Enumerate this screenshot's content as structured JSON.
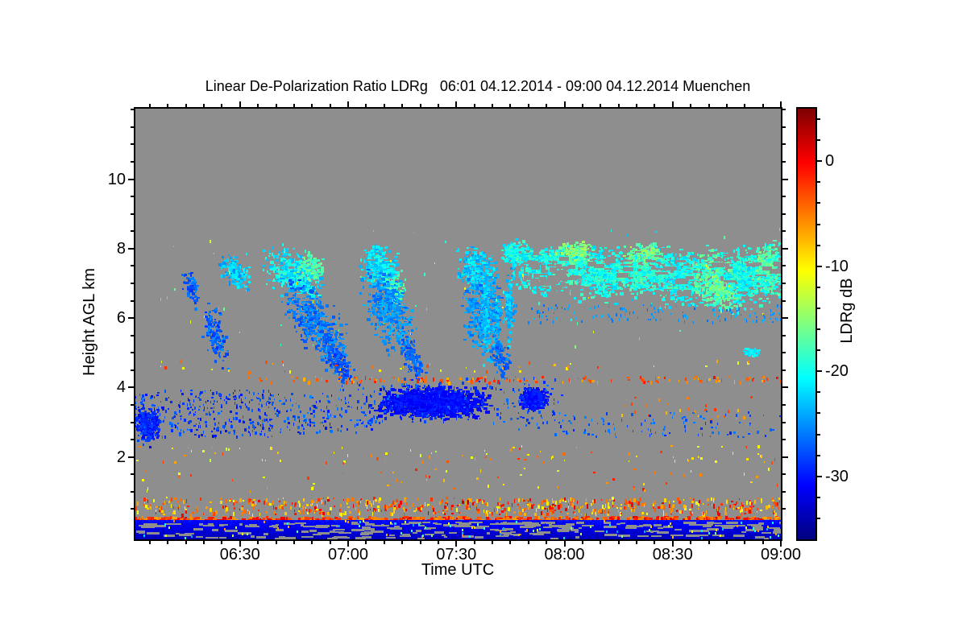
{
  "title": "Linear De-Polarization Ratio LDRg   06:01 04.12.2014 - 09:00 04.12.2014 Muenchen",
  "axes": {
    "x": {
      "label": "Time UTC",
      "start": "06:01",
      "end": "09:00",
      "major_ticks": [
        {
          "t": 6.5,
          "label": "06:30"
        },
        {
          "t": 7.0,
          "label": "07:00"
        },
        {
          "t": 7.5,
          "label": "07:30"
        },
        {
          "t": 8.0,
          "label": "08:00"
        },
        {
          "t": 8.5,
          "label": "08:30"
        },
        {
          "t": 9.0,
          "label": "09:00"
        }
      ],
      "minor_step_minutes": 5
    },
    "y": {
      "label": "Height AGL km",
      "major_ticks": [
        2,
        4,
        6,
        8,
        10
      ],
      "minor_step_km": 0.5,
      "min_km": -0.37,
      "max_km": 12.4
    }
  },
  "colorbar": {
    "label": "LDRg dB",
    "vmin": -36,
    "vmax": 5,
    "major_ticks": [
      0,
      -10,
      -20,
      -30
    ],
    "minor_step_db": 2
  },
  "colors": {
    "page_background": "#ffffff",
    "plot_background": "#8e8e8e",
    "frame": "#000000",
    "colormap": "jet"
  },
  "chart_data": {
    "type": "heatmap",
    "title": "Linear De-Polarization Ratio LDRg   06:01 04.12.2014 - 09:00 04.12.2014 Muenchen",
    "x_unit": "hours_utc",
    "y_unit": "km_agl",
    "value_unit": "dB",
    "x_range": [
      6.0167,
      9.0
    ],
    "y_range": [
      -0.37,
      12.4
    ],
    "value_range": [
      -36,
      5
    ],
    "features": {
      "clusters": [
        {
          "t": 6.27,
          "h": 6.9,
          "rt": 0.035,
          "rh": 0.4,
          "slant": 1.1,
          "v": -27,
          "dv": 2,
          "n": 70,
          "s": 3
        },
        {
          "t": 6.38,
          "h": 5.5,
          "rt": 0.05,
          "rh": 0.7,
          "slant": 1.2,
          "v": -27,
          "dv": 2,
          "n": 140,
          "s": 3
        },
        {
          "t": 6.47,
          "h": 7.35,
          "rt": 0.06,
          "rh": 0.4,
          "slant": 0.5,
          "v": -23,
          "dv": 2.5,
          "n": 160,
          "s": 3
        },
        {
          "t": 6.75,
          "h": 7.3,
          "rt": 0.12,
          "rh": 0.6,
          "slant": 0.3,
          "v": -21,
          "dv": 3,
          "n": 430,
          "s": 4
        },
        {
          "t": 6.82,
          "h": 7.5,
          "rt": 0.06,
          "rh": 0.35,
          "slant": 0.2,
          "v": -17.5,
          "dv": 2,
          "n": 100,
          "s": 3
        },
        {
          "t": 6.84,
          "h": 5.9,
          "rt": 0.13,
          "rh": 0.85,
          "slant": 0.9,
          "v": -26,
          "dv": 2,
          "n": 420,
          "s": 4
        },
        {
          "t": 6.95,
          "h": 4.75,
          "rt": 0.06,
          "rh": 0.4,
          "slant": 1.0,
          "v": -27.5,
          "dv": 1.5,
          "n": 130,
          "s": 3
        },
        {
          "t": 7.14,
          "h": 7.5,
          "rt": 0.08,
          "rh": 0.55,
          "slant": 0.2,
          "v": -21.5,
          "dv": 2.5,
          "n": 300,
          "s": 4
        },
        {
          "t": 7.21,
          "h": 6.9,
          "rt": 0.045,
          "rh": 0.45,
          "slant": 0.4,
          "v": -18,
          "dv": 2,
          "n": 100,
          "s": 3
        },
        {
          "t": 7.18,
          "h": 6.3,
          "rt": 0.1,
          "rh": 1.0,
          "slant": 0.7,
          "v": -25,
          "dv": 2,
          "n": 400,
          "s": 4
        },
        {
          "t": 7.29,
          "h": 4.9,
          "rt": 0.05,
          "rh": 0.5,
          "slant": 1.2,
          "v": -27,
          "dv": 1.5,
          "n": 110,
          "s": 3
        },
        {
          "t": 7.59,
          "h": 7.4,
          "rt": 0.08,
          "rh": 0.6,
          "slant": 0.2,
          "v": -22.5,
          "dv": 2.5,
          "n": 280,
          "s": 4
        },
        {
          "t": 7.61,
          "h": 6.1,
          "rt": 0.08,
          "rh": 1.05,
          "slant": 0.5,
          "v": -25,
          "dv": 2,
          "n": 280,
          "s": 4
        },
        {
          "t": 7.63,
          "h": 6.1,
          "rt": 0.025,
          "rh": 1.15,
          "slant": 0.2,
          "v": -23,
          "dv": 2,
          "n": 150,
          "s": 3
        },
        {
          "t": 7.68,
          "h": 6.1,
          "rt": 0.022,
          "rh": 1.0,
          "slant": 0.2,
          "v": -24,
          "dv": 2,
          "n": 120,
          "s": 3
        },
        {
          "t": 7.74,
          "h": 6.4,
          "rt": 0.022,
          "rh": 0.95,
          "slant": 0.2,
          "v": -23,
          "dv": 2,
          "n": 120,
          "s": 3
        },
        {
          "t": 7.7,
          "h": 4.9,
          "rt": 0.05,
          "rh": 0.45,
          "slant": 0.9,
          "v": -26.5,
          "dv": 1.5,
          "n": 90,
          "s": 3
        },
        {
          "t": 7.77,
          "h": 7.9,
          "rt": 0.06,
          "rh": 0.35,
          "slant": 0,
          "v": -20,
          "dv": 2.5,
          "n": 160,
          "s": 3
        },
        {
          "t": 7.88,
          "h": 7.4,
          "rt": 0.11,
          "rh": 0.6,
          "slant": 0,
          "v": -20,
          "dv": 2.5,
          "n": 400,
          "s": 4
        },
        {
          "t": 8.02,
          "h": 7.5,
          "rt": 0.11,
          "rh": 0.6,
          "slant": 0,
          "v": -19,
          "dv": 2.5,
          "n": 400,
          "s": 4
        },
        {
          "t": 8.05,
          "h": 7.95,
          "rt": 0.08,
          "rh": 0.25,
          "slant": 0,
          "v": -15.5,
          "dv": 1.8,
          "n": 110,
          "s": 3
        },
        {
          "t": 8.18,
          "h": 7.3,
          "rt": 0.11,
          "rh": 0.7,
          "slant": 0,
          "v": -20,
          "dv": 2.5,
          "n": 400,
          "s": 4
        },
        {
          "t": 8.35,
          "h": 7.4,
          "rt": 0.11,
          "rh": 0.65,
          "slant": 0,
          "v": -19,
          "dv": 2.5,
          "n": 400,
          "s": 4
        },
        {
          "t": 8.38,
          "h": 7.9,
          "rt": 0.09,
          "rh": 0.25,
          "slant": 0,
          "v": -16,
          "dv": 1.8,
          "n": 100,
          "s": 3
        },
        {
          "t": 8.52,
          "h": 7.2,
          "rt": 0.11,
          "rh": 0.75,
          "slant": 0,
          "v": -20,
          "dv": 2.5,
          "n": 400,
          "s": 4
        },
        {
          "t": 8.69,
          "h": 7.1,
          "rt": 0.11,
          "rh": 0.8,
          "slant": 0.2,
          "v": -18,
          "dv": 2.5,
          "n": 400,
          "s": 4
        },
        {
          "t": 8.72,
          "h": 6.9,
          "rt": 0.08,
          "rh": 0.4,
          "slant": 0.3,
          "v": -16,
          "dv": 1.8,
          "n": 120,
          "s": 3
        },
        {
          "t": 8.84,
          "h": 7.2,
          "rt": 0.1,
          "rh": 0.8,
          "slant": 0,
          "v": -20,
          "dv": 2.5,
          "n": 380,
          "s": 4
        },
        {
          "t": 8.95,
          "h": 7.4,
          "rt": 0.055,
          "rh": 0.75,
          "slant": 0,
          "v": -19,
          "dv": 2.5,
          "n": 220,
          "s": 4
        },
        {
          "t": 8.92,
          "h": 7.6,
          "rt": 0.05,
          "rh": 0.45,
          "slant": 0,
          "v": -17,
          "dv": 1.8,
          "n": 90,
          "s": 3
        },
        {
          "t": 8.86,
          "h": 5.05,
          "rt": 0.035,
          "rh": 0.13,
          "slant": 0,
          "v": -21,
          "dv": 1.5,
          "n": 50,
          "s": 3
        },
        {
          "t": 6.07,
          "h": 2.95,
          "rt": 0.055,
          "rh": 0.5,
          "slant": 0,
          "v": -29.5,
          "dv": 1.5,
          "n": 280,
          "s": 3
        },
        {
          "t": 7.38,
          "h": 3.6,
          "rt": 0.22,
          "rh": 0.4,
          "slant": 0,
          "v": -30.5,
          "dv": 1.2,
          "n": 1500,
          "s": 5
        },
        {
          "t": 7.85,
          "h": 3.7,
          "rt": 0.055,
          "rh": 0.28,
          "slant": 0,
          "v": -30,
          "dv": 1.3,
          "n": 350,
          "s": 5
        }
      ],
      "gray_holes": [
        {
          "t0": 7.8,
          "t1": 9.0,
          "h0": 6.6,
          "h1": 8.1,
          "n": 90,
          "w": 14,
          "hh": 5
        },
        {
          "t0": 6.5,
          "t1": 7.6,
          "h0": 5.6,
          "h1": 7.9,
          "n": 60,
          "w": 10,
          "hh": 4
        },
        {
          "t0": 7.78,
          "t1": 8.0,
          "h0": 6.9,
          "h1": 7.7,
          "n": 35,
          "w": 16,
          "hh": 6
        }
      ],
      "speckle_rows": [
        {
          "t0": 6.53,
          "t1": 9.0,
          "h0": 4.18,
          "h1": 4.34,
          "n": 150,
          "v": -4,
          "dv": 3.5,
          "w": 3,
          "hh": 4
        },
        {
          "t0": 6.05,
          "t1": 9.0,
          "h0": 4.45,
          "h1": 4.8,
          "n": 45,
          "v": -7,
          "dv": 5,
          "w": 3,
          "hh": 3
        },
        {
          "t0": 8.2,
          "t1": 8.9,
          "h0": 3.1,
          "h1": 3.75,
          "n": 28,
          "v": -5,
          "dv": 3,
          "w": 3,
          "hh": 3
        },
        {
          "t0": 6.0,
          "t1": 6.65,
          "h0": 2.6,
          "h1": 3.95,
          "n": 300,
          "v": -28.5,
          "dv": 2,
          "w": 3,
          "hh": 3
        },
        {
          "t0": 6.6,
          "t1": 7.12,
          "h0": 2.7,
          "h1": 3.85,
          "n": 150,
          "v": -28,
          "dv": 2.5,
          "w": 3,
          "hh": 3
        },
        {
          "t0": 7.75,
          "t1": 9.0,
          "h0": 2.6,
          "h1": 3.35,
          "n": 110,
          "v": -27.5,
          "dv": 2,
          "w": 3,
          "hh": 3
        },
        {
          "t0": 6.95,
          "t1": 8.0,
          "h0": 3.0,
          "h1": 4.3,
          "n": 200,
          "v": -28,
          "dv": 2,
          "w": 3,
          "hh": 3
        },
        {
          "t0": 6.0,
          "t1": 9.0,
          "h0": 1.85,
          "h1": 2.35,
          "n": 90,
          "v": -8,
          "dv": 6,
          "w": 3,
          "hh": 3
        },
        {
          "t0": 6.0,
          "t1": 9.0,
          "h0": 1.05,
          "h1": 1.7,
          "n": 60,
          "v": -7,
          "dv": 6,
          "w": 3,
          "hh": 3
        },
        {
          "t0": 6.0,
          "t1": 9.0,
          "h0": 0.37,
          "h1": 0.85,
          "n": 650,
          "v": -5,
          "dv": 6,
          "w": 3,
          "hh": 4
        },
        {
          "t0": 6.3,
          "t1": 8.9,
          "h0": 0.4,
          "h1": 0.8,
          "n": 18,
          "v": 1.0,
          "dv": 1.5,
          "w": 3,
          "hh": 5
        },
        {
          "t0": 6.1,
          "t1": 9.0,
          "h0": 5.2,
          "h1": 8.6,
          "n": 70,
          "v": -19,
          "dv": 4,
          "w": 2,
          "hh": 3
        },
        {
          "t0": 6.2,
          "t1": 9.0,
          "h0": 5.5,
          "h1": 8.3,
          "n": 18,
          "v": -11,
          "dv": 2,
          "w": 2,
          "hh": 3
        },
        {
          "t0": 7.6,
          "t1": 9.0,
          "h0": 5.9,
          "h1": 6.4,
          "n": 160,
          "v": -25,
          "dv": 2,
          "w": 2,
          "hh": 3
        }
      ],
      "surface_line": {
        "t0": 6.0,
        "t1": 9.0,
        "h0": 0.2,
        "h1": 0.3,
        "segments": 480,
        "v": -3,
        "dv": 4
      },
      "bottom_band": {
        "t0": 6.0,
        "t1": 9.0,
        "h_top": 0.19,
        "v_top": -30.5,
        "v_bot": -34,
        "gray_holes": 240,
        "color_dots": 90
      }
    }
  }
}
